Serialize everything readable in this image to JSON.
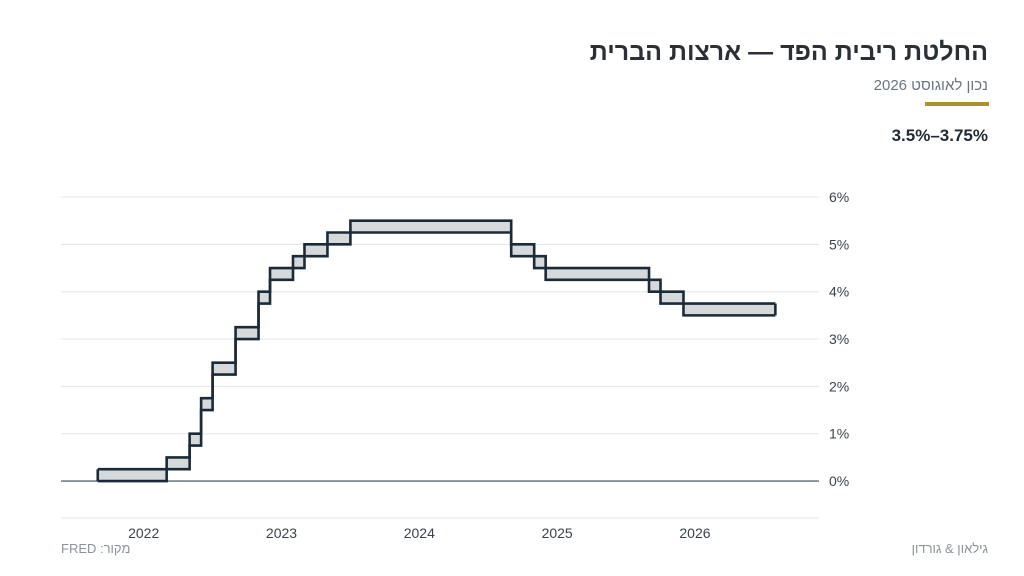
{
  "header": {
    "title": "החלטת ריבית הפד — ארצות הברית",
    "subtitle": "נכון לאוגוסט 2026",
    "current_value": "3.5%–3.75%"
  },
  "footer": {
    "source": "מקור: FRED",
    "brand": "גילאון & גורדון"
  },
  "colors": {
    "accent": "#a8912e",
    "line": "#1c2a38",
    "band_fill": "#d6d9dc",
    "grid": "#e3e5e8",
    "zero_line": "#5b6672"
  },
  "chart_data": {
    "type": "area",
    "title": "",
    "xlabel": "",
    "ylabel": "",
    "x_tick_labels": [
      "2022",
      "2023",
      "2024",
      "2025",
      "2026"
    ],
    "x_tick_values": [
      2022,
      2023,
      2024,
      2025,
      2026
    ],
    "y_tick_labels": [
      "0%",
      "1%",
      "2%",
      "3%",
      "4%",
      "5%",
      "6%"
    ],
    "y_tick_values": [
      0,
      1,
      2,
      3,
      4,
      5,
      6
    ],
    "xlim": [
      2021.4,
      2026.9
    ],
    "ylim": [
      -0.78,
      6.0
    ],
    "grid": true,
    "y_axis_position": "right",
    "series": [
      {
        "points": [
          {
            "date": "2021-09",
            "lower": 0.0,
            "upper": 0.25
          },
          {
            "date": "2022-03",
            "lower": 0.25,
            "upper": 0.5
          },
          {
            "date": "2022-05",
            "lower": 0.75,
            "upper": 1.0
          },
          {
            "date": "2022-06",
            "lower": 1.5,
            "upper": 1.75
          },
          {
            "date": "2022-07",
            "lower": 2.25,
            "upper": 2.5
          },
          {
            "date": "2022-09",
            "lower": 3.0,
            "upper": 3.25
          },
          {
            "date": "2022-11",
            "lower": 3.75,
            "upper": 4.0
          },
          {
            "date": "2022-12",
            "lower": 4.25,
            "upper": 4.5
          },
          {
            "date": "2023-02",
            "lower": 4.5,
            "upper": 4.75
          },
          {
            "date": "2023-03",
            "lower": 4.75,
            "upper": 5.0
          },
          {
            "date": "2023-05",
            "lower": 5.0,
            "upper": 5.25
          },
          {
            "date": "2023-07",
            "lower": 5.25,
            "upper": 5.5
          },
          {
            "date": "2024-09",
            "lower": 4.75,
            "upper": 5.0
          },
          {
            "date": "2024-11",
            "lower": 4.5,
            "upper": 4.75
          },
          {
            "date": "2024-12",
            "lower": 4.25,
            "upper": 4.5
          },
          {
            "date": "2025-09",
            "lower": 4.0,
            "upper": 4.25
          },
          {
            "date": "2025-10",
            "lower": 3.75,
            "upper": 4.0
          },
          {
            "date": "2025-12",
            "lower": 3.5,
            "upper": 3.75
          },
          {
            "date": "2026-08",
            "lower": 3.5,
            "upper": 3.75
          }
        ]
      }
    ]
  }
}
